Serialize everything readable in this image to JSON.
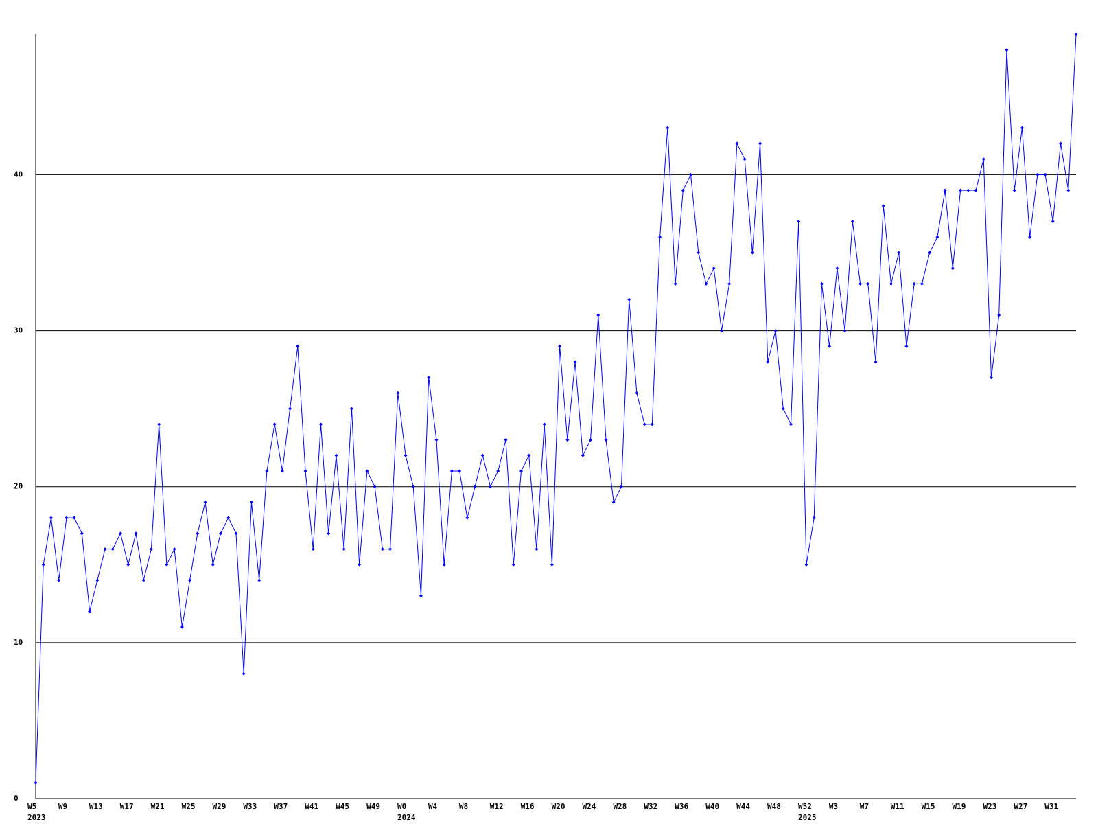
{
  "chart_data": {
    "type": "line",
    "categories": [
      "W5",
      null,
      null,
      null,
      "W9",
      null,
      null,
      null,
      "W13",
      null,
      null,
      null,
      "W17",
      null,
      null,
      null,
      "W21",
      null,
      null,
      null,
      "W25",
      null,
      null,
      null,
      "W29",
      null,
      null,
      null,
      "W33",
      null,
      null,
      null,
      "W37",
      null,
      null,
      null,
      "W41",
      null,
      null,
      null,
      "W45",
      null,
      null,
      null,
      "W49",
      null,
      null,
      null,
      "W0",
      null,
      null,
      null,
      "W4",
      null,
      null,
      null,
      "W8",
      null,
      null,
      null,
      "W12",
      null,
      null,
      null,
      "W16",
      null,
      null,
      null,
      "W20",
      null,
      null,
      null,
      "W24",
      null,
      null,
      null,
      "W28",
      null,
      null,
      null,
      "W32",
      null,
      null,
      null,
      "W36",
      null,
      null,
      null,
      "W40",
      null,
      null,
      null,
      "W44",
      null,
      null,
      null,
      "W48",
      null,
      null,
      null,
      "W52",
      null,
      null,
      null,
      "W3",
      null,
      null,
      null,
      "W7",
      null,
      null,
      null,
      "W11",
      null,
      null,
      null,
      "W15",
      null,
      null,
      null,
      "W19",
      null,
      null,
      null,
      "W23",
      null,
      null,
      null,
      "W27",
      null,
      null,
      null,
      "W31",
      null,
      null,
      null
    ],
    "year_labels": [
      {
        "label": "2023",
        "index": 0
      },
      {
        "label": "2024",
        "index": 48
      },
      {
        "label": "2025",
        "index": 100
      }
    ],
    "series": [
      {
        "color": "#0000ff",
        "values": [
          1,
          15,
          18,
          14,
          18,
          18,
          17,
          12,
          14,
          16,
          16,
          17,
          15,
          17,
          14,
          16,
          24,
          15,
          16,
          11,
          14,
          17,
          19,
          15,
          17,
          18,
          17,
          8,
          19,
          14,
          21,
          24,
          21,
          25,
          29,
          21,
          16,
          24,
          17,
          22,
          16,
          25,
          15,
          21,
          20,
          16,
          16,
          26,
          22,
          20,
          13,
          27,
          23,
          15,
          21,
          21,
          18,
          20,
          22,
          20,
          21,
          23,
          15,
          21,
          22,
          16,
          24,
          15,
          29,
          23,
          28,
          22,
          23,
          31,
          23,
          19,
          20,
          32,
          26,
          24,
          24,
          36,
          43,
          33,
          39,
          40,
          35,
          33,
          34,
          30,
          33,
          42,
          41,
          35,
          42,
          28,
          30,
          25,
          24,
          37,
          15,
          18,
          33,
          29,
          34,
          30,
          37,
          33,
          33,
          28,
          38,
          33,
          35,
          29,
          33,
          33,
          35,
          36,
          39,
          34,
          39,
          39,
          39,
          41,
          27,
          31,
          48,
          39,
          43,
          36,
          40,
          40,
          37,
          42,
          39,
          49
        ]
      }
    ],
    "ylim": [
      0,
      49
    ],
    "yticks": [
      0,
      10,
      20,
      30,
      40
    ],
    "grid": true
  }
}
